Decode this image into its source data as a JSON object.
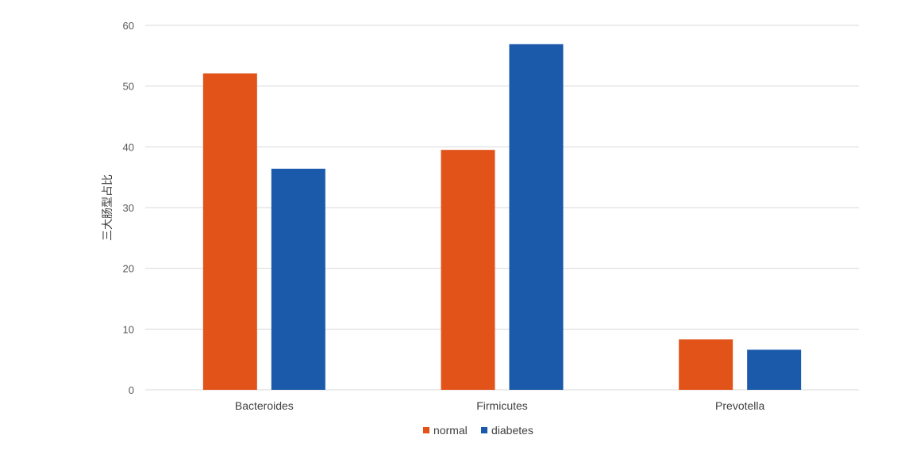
{
  "chart_data": {
    "type": "bar",
    "title": "",
    "xlabel": "",
    "ylabel": "三大肠型占比",
    "categories": [
      "Bacteroides",
      "Firmicutes",
      "Prevotella"
    ],
    "series": [
      {
        "name": "normal",
        "color": "#E2531A",
        "values": [
          52.1,
          39.5,
          8.3
        ]
      },
      {
        "name": "diabetes",
        "color": "#1B5AAB",
        "values": [
          36.4,
          56.9,
          6.6
        ]
      }
    ],
    "ylim": [
      0,
      60
    ],
    "yticks": [
      0,
      10,
      20,
      30,
      40,
      50,
      60
    ],
    "grid": true,
    "gridColor": "#D9D9D9",
    "legend": "bottom-center"
  }
}
